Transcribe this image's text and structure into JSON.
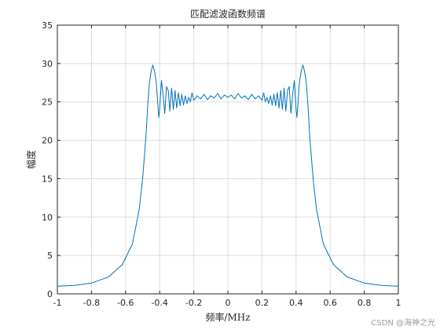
{
  "chart_data": {
    "type": "line",
    "title": "匹配滤波函数频谱",
    "xlabel": "频率/MHz",
    "ylabel": "幅度",
    "xlim": [
      -1,
      1
    ],
    "ylim": [
      0,
      35
    ],
    "xticks": [
      "-1",
      "-0.8",
      "-0.6",
      "-0.4",
      "-0.2",
      "0",
      "0.2",
      "0.4",
      "0.6",
      "0.8",
      "1"
    ],
    "yticks": [
      "0",
      "5",
      "10",
      "15",
      "20",
      "25",
      "30",
      "35"
    ],
    "grid": true,
    "series": [
      {
        "color": "#0072bd",
        "x": [
          -1.0,
          -0.9,
          -0.8,
          -0.7,
          -0.62,
          -0.56,
          -0.52,
          -0.5,
          -0.48,
          -0.47,
          -0.46,
          -0.45,
          -0.44,
          -0.43,
          -0.42,
          -0.41,
          -0.405,
          -0.4,
          -0.39,
          -0.38,
          -0.37,
          -0.36,
          -0.35,
          -0.34,
          -0.33,
          -0.32,
          -0.31,
          -0.3,
          -0.29,
          -0.28,
          -0.27,
          -0.26,
          -0.25,
          -0.24,
          -0.23,
          -0.22,
          -0.21,
          -0.2,
          -0.18,
          -0.16,
          -0.14,
          -0.12,
          -0.1,
          -0.08,
          -0.06,
          -0.04,
          -0.02,
          0.0,
          0.02,
          0.04,
          0.06,
          0.08,
          0.1,
          0.12,
          0.14,
          0.16,
          0.18,
          0.2,
          0.21,
          0.22,
          0.23,
          0.24,
          0.25,
          0.26,
          0.27,
          0.28,
          0.29,
          0.3,
          0.31,
          0.32,
          0.33,
          0.34,
          0.35,
          0.36,
          0.37,
          0.38,
          0.39,
          0.4,
          0.405,
          0.41,
          0.42,
          0.43,
          0.44,
          0.45,
          0.46,
          0.47,
          0.48,
          0.5,
          0.52,
          0.56,
          0.62,
          0.7,
          0.8,
          0.9,
          1.0
        ],
        "y": [
          1.0,
          1.1,
          1.4,
          2.2,
          3.8,
          6.5,
          11.0,
          15.0,
          20.5,
          24.5,
          27.5,
          29.0,
          29.8,
          29.0,
          27.5,
          24.5,
          23.0,
          24.0,
          27.8,
          26.0,
          23.5,
          27.0,
          26.5,
          23.8,
          26.8,
          24.0,
          26.5,
          24.2,
          26.2,
          24.5,
          26.0,
          24.6,
          25.8,
          24.8,
          25.6,
          25.0,
          26.2,
          25.2,
          25.8,
          25.4,
          26.0,
          25.3,
          25.8,
          25.5,
          26.1,
          25.4,
          25.9,
          25.6,
          25.9,
          25.4,
          26.1,
          25.5,
          25.8,
          25.3,
          26.0,
          25.4,
          25.8,
          25.2,
          26.2,
          25.0,
          25.6,
          24.8,
          25.8,
          24.6,
          26.0,
          24.5,
          26.2,
          24.2,
          26.5,
          24.0,
          26.8,
          23.8,
          26.5,
          27.0,
          23.5,
          26.0,
          27.8,
          24.0,
          23.0,
          24.5,
          27.5,
          29.0,
          29.8,
          29.0,
          27.5,
          24.5,
          20.5,
          15.0,
          11.0,
          6.5,
          3.8,
          2.2,
          1.4,
          1.1,
          1.0
        ]
      }
    ]
  },
  "watermark": "CSDN @海神之光"
}
